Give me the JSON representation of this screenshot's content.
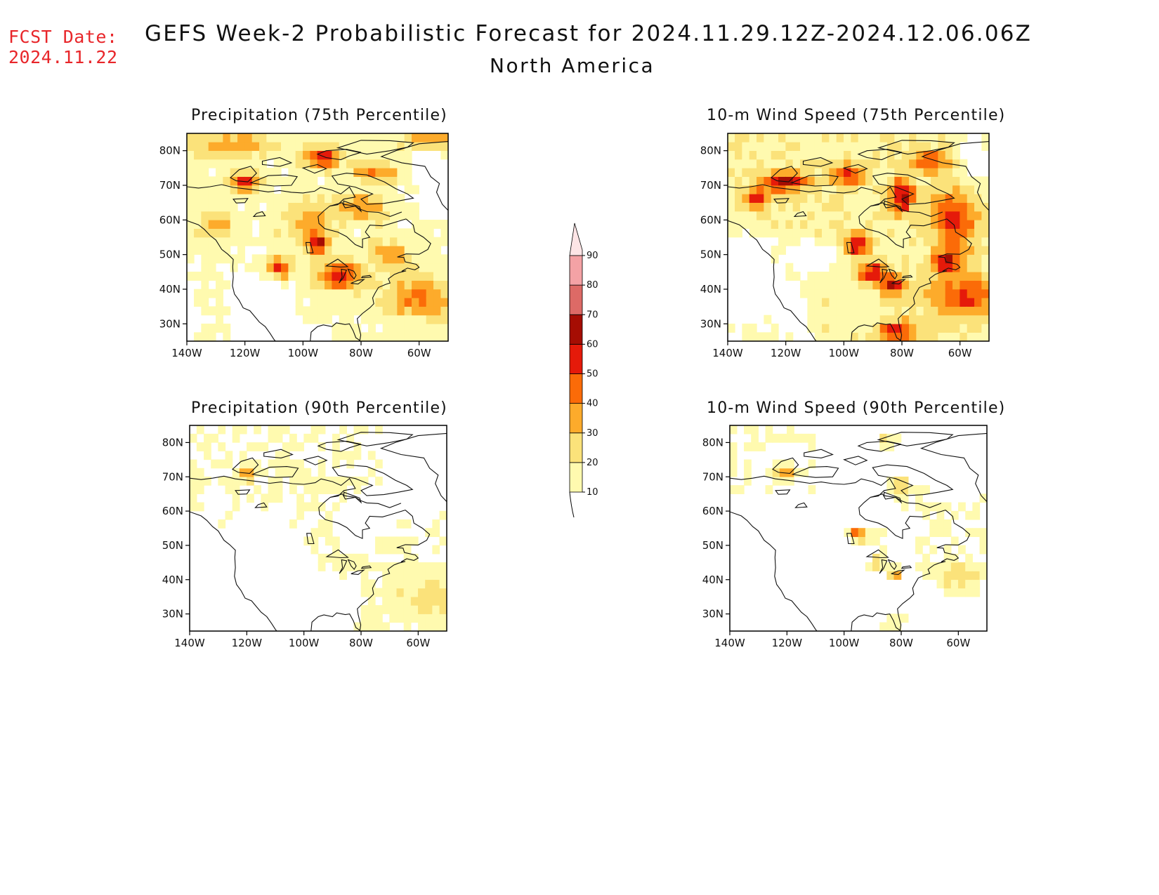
{
  "fcst_date": {
    "label": "FCST Date:",
    "value": "2024.11.22"
  },
  "title": "GEFS Week-2 Probabilistic Forecast for 2024.11.29.12Z-2024.12.06.06Z",
  "subtitle": "North America",
  "panels": [
    {
      "id": "precip-75",
      "title": "Precipitation (75th Percentile)"
    },
    {
      "id": "wind-75",
      "title": "10-m Wind Speed (75th Percentile)"
    },
    {
      "id": "precip-90",
      "title": "Precipitation (90th Percentile)"
    },
    {
      "id": "wind-90",
      "title": "10-m Wind Speed (90th Percentile)"
    }
  ],
  "axes": {
    "lat_ticks": [
      "80N",
      "70N",
      "60N",
      "50N",
      "40N",
      "30N"
    ],
    "lat_values": [
      80,
      70,
      60,
      50,
      40,
      30
    ],
    "lon_ticks": [
      "140W",
      "120W",
      "100W",
      "80W",
      "60W"
    ],
    "lon_values": [
      -140,
      -120,
      -100,
      -80,
      -60
    ],
    "lon_range": [
      -140,
      -50
    ],
    "lat_range": [
      25,
      85
    ]
  },
  "colorbar": {
    "levels": [
      "10",
      "20",
      "30",
      "40",
      "50",
      "60",
      "70",
      "80",
      "90"
    ],
    "colors": [
      "#fffaaf",
      "#fbe27a",
      "#fdab2b",
      "#fb6b08",
      "#e51a0a",
      "#a50d03",
      "#dd6a66",
      "#f4a2a5",
      "#fde5e6"
    ]
  }
}
